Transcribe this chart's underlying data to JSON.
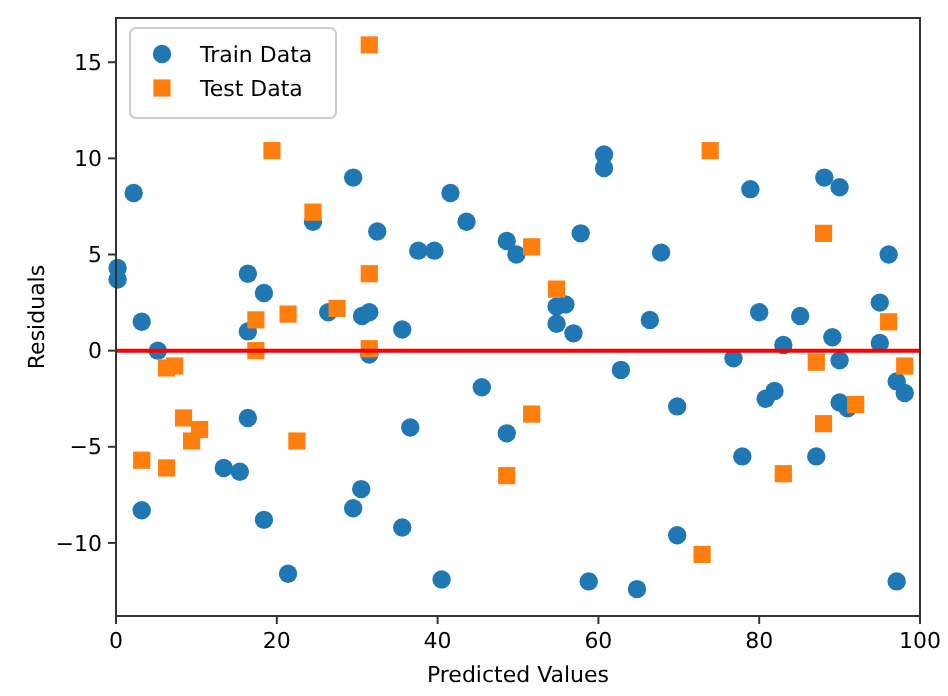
{
  "chart_data": {
    "type": "scatter",
    "xlabel": "Predicted Values",
    "ylabel": "Residuals",
    "xlim": [
      0,
      100
    ],
    "xticks": [
      0,
      20,
      40,
      60,
      80,
      100
    ],
    "ylim": [
      -13.8,
      17.3
    ],
    "yticks": [
      -10,
      -5,
      0,
      5,
      10,
      15
    ],
    "grid": false,
    "legend": "top left",
    "ref_lines": [
      {
        "axis": "y",
        "value": 0,
        "color": "#ff0000",
        "line_style": "solid"
      }
    ],
    "series": [
      {
        "name": "Train Data",
        "color": "#1f77b4",
        "marker": "circle",
        "x": [
          0.2,
          0.2,
          2.2,
          3.2,
          5.2,
          3.2,
          16.4,
          16.4,
          18.4,
          16.4,
          13.4,
          15.4,
          18.4,
          21.4,
          24.5,
          26.4,
          29.5,
          30.6,
          31.5,
          32.5,
          35.6,
          37.6,
          39.6,
          41.6,
          43.6,
          31.5,
          29.5,
          30.5,
          35.6,
          36.6,
          40.5,
          45.5,
          48.6,
          49.8,
          57.8,
          60.7,
          60.7,
          67.8,
          78.9,
          88.1,
          90.0,
          96.1,
          54.8,
          55.9,
          54.8,
          56.9,
          66.4,
          80.0,
          85.1,
          95.0,
          83.0,
          89.1,
          95.0,
          76.8,
          90.0,
          48.6,
          62.8,
          69.8,
          80.8,
          81.9,
          77.9,
          87.1,
          90.0,
          91.0,
          97.1,
          98.1,
          69.8,
          58.8,
          64.8,
          97.1
        ],
        "values": [
          4.3,
          3.7,
          8.2,
          1.5,
          0,
          -8.3,
          4.0,
          1.0,
          3.0,
          -3.5,
          -6.1,
          -6.3,
          -8.8,
          -11.6,
          6.7,
          2.0,
          9.0,
          1.8,
          2.0,
          6.2,
          1.1,
          5.2,
          5.2,
          8.2,
          6.7,
          -0.2,
          -8.2,
          -7.2,
          -9.2,
          -4.0,
          -11.9,
          -1.9,
          5.7,
          5.0,
          6.1,
          10.2,
          9.5,
          5.1,
          8.4,
          9.0,
          8.5,
          5.0,
          2.3,
          2.4,
          1.4,
          0.9,
          1.6,
          2.0,
          1.8,
          2.5,
          0.3,
          0.7,
          0.4,
          -0.4,
          -0.5,
          -4.3,
          -1.0,
          -2.9,
          -2.5,
          -2.1,
          -5.5,
          -5.5,
          -2.7,
          -3.0,
          -1.6,
          -2.2,
          -9.6,
          -12.0,
          -12.4,
          -12.0
        ]
      },
      {
        "name": "Test Data",
        "color": "#ff7f0e",
        "marker": "square",
        "x": [
          31.5,
          19.4,
          24.5,
          31.5,
          17.4,
          21.4,
          27.5,
          17.4,
          31.5,
          6.3,
          7.3,
          3.2,
          6.3,
          8.4,
          9.4,
          10.4,
          22.5,
          73.9,
          51.7,
          54.8,
          88.0,
          96.1,
          87.1,
          98.1,
          51.7,
          48.6,
          88.0,
          92.0,
          83.0,
          72.9
        ],
        "values": [
          15.9,
          10.4,
          7.2,
          4.0,
          1.6,
          1.9,
          2.2,
          0,
          0.1,
          -0.9,
          -0.8,
          -5.7,
          -6.1,
          -3.5,
          -4.7,
          -4.1,
          -4.7,
          10.4,
          5.4,
          3.2,
          6.1,
          1.5,
          -0.6,
          -0.8,
          -3.3,
          -6.5,
          -3.8,
          -2.8,
          -6.4,
          -10.6
        ]
      }
    ]
  }
}
